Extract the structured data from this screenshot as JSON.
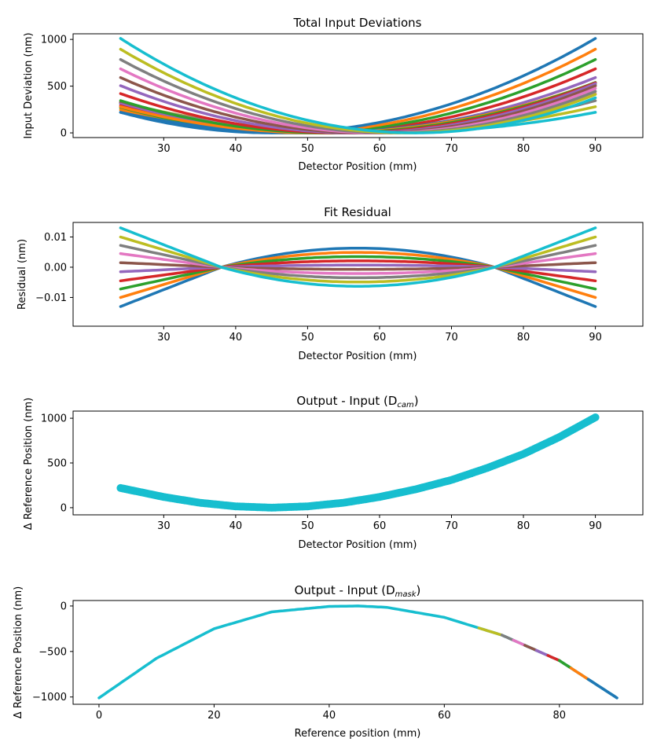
{
  "palette": [
    "#1f77b4",
    "#ff7f0e",
    "#2ca02c",
    "#d62728",
    "#9467bd",
    "#8c564b",
    "#e377c2",
    "#7f7f7f",
    "#bcbd22",
    "#17becf"
  ],
  "chart_data": [
    {
      "type": "line",
      "title": "Total Input Deviations",
      "xlabel": "Detector Position (mm)",
      "ylabel": "Input Deviation (nm)",
      "xlim": [
        17.4,
        96.6
      ],
      "ylim": [
        -50,
        1060
      ],
      "xticks": [
        30,
        40,
        50,
        60,
        70,
        80,
        90
      ],
      "yticks": [
        0,
        500,
        1000
      ],
      "x_range": [
        24,
        90
      ],
      "series_count": 20,
      "description_values": {
        "right_end_values": [
          1010,
          895,
          785,
          685,
          592,
          505,
          420,
          345,
          280,
          220
        ],
        "left_end_values": [
          220,
          280,
          345,
          420,
          505,
          592,
          685,
          785,
          895,
          1010
        ],
        "minimum_x_range": [
          45,
          65
        ]
      }
    },
    {
      "type": "line",
      "title": "Fit Residual",
      "xlabel": "Detector Position (mm)",
      "ylabel": "Residual (nm)",
      "xlim": [
        17.4,
        96.6
      ],
      "ylim": [
        -0.0195,
        0.0148
      ],
      "xticks": [
        30,
        40,
        50,
        60,
        70,
        80,
        90
      ],
      "yticks": [
        0.01,
        0.0,
        -0.01
      ],
      "ytick_labels": [
        "0.01",
        "0.00",
        "−0.01"
      ],
      "x_range": [
        24,
        90
      ],
      "zero_crossings": [
        38,
        76
      ],
      "end_values": [
        -0.013,
        -0.01,
        -0.0072,
        -0.0045,
        -0.0015,
        0.0015,
        0.0045,
        0.0072,
        0.01,
        0.013
      ],
      "mid_values": [
        0.0063,
        0.0049,
        0.0035,
        0.0021,
        0.0007,
        -0.0007,
        -0.0021,
        -0.0035,
        -0.0049,
        -0.0063
      ]
    },
    {
      "type": "scatter",
      "title": "Output - Input (D",
      "title_subscript": "cam",
      "xlabel": "Detector Position (mm)",
      "ylabel": "Δ Reference Position (nm)",
      "xlim": [
        17.4,
        96.6
      ],
      "ylim": [
        -80,
        1080
      ],
      "xticks": [
        30,
        40,
        50,
        60,
        70,
        80,
        90
      ],
      "yticks": [
        0,
        500,
        1000
      ],
      "x": [
        24,
        30,
        35,
        40,
        45,
        50,
        55,
        60,
        65,
        70,
        75,
        80,
        85,
        90
      ],
      "y": [
        220,
        120,
        55,
        15,
        0,
        15,
        55,
        120,
        205,
        310,
        445,
        600,
        790,
        1010
      ]
    },
    {
      "type": "line",
      "title": "Output - Input (D",
      "title_subscript": "mask",
      "xlabel": "Reference position (mm)",
      "ylabel": "Δ Reference Position (nm)",
      "xlim": [
        -4.5,
        94.5
      ],
      "ylim": [
        -1080,
        60
      ],
      "xticks": [
        0,
        20,
        40,
        60,
        80
      ],
      "yticks": [
        0,
        -500,
        -1000
      ],
      "ytick_labels": [
        "0",
        "−500",
        "−1000"
      ],
      "x": [
        0,
        10,
        20,
        30,
        40,
        45,
        50,
        60,
        70,
        80,
        90
      ],
      "y": [
        -1010,
        -575,
        -250,
        -65,
        -5,
        0,
        -15,
        -125,
        -320,
        -600,
        -1010
      ],
      "segment_starts": [
        66,
        70,
        72,
        74,
        76,
        78,
        80,
        82,
        85,
        88
      ]
    }
  ]
}
